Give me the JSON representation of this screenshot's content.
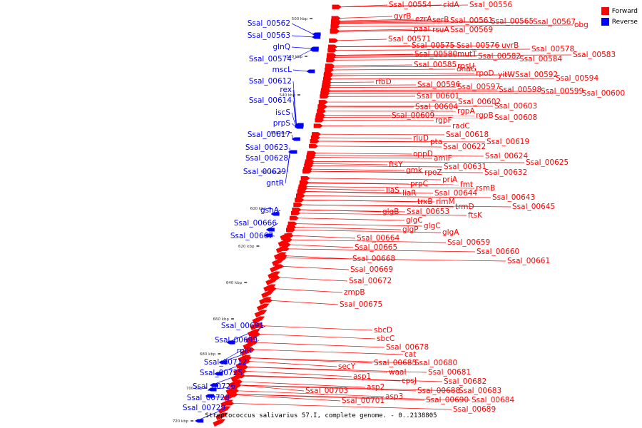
{
  "caption": "Streptococcus salivarius 57.I, complete genome. - 0..2138805",
  "legend": [
    {
      "label": "Forward",
      "color": "#ff0000"
    },
    {
      "label": "Reverse",
      "color": "#0000ff"
    }
  ],
  "colors": {
    "forward": "#ff0000",
    "reverse": "#0000ff",
    "backbone": "#888888"
  },
  "ticks": [
    "500 kbp",
    "520 kbp",
    "540 kbp",
    "560 kbp",
    "580 kbp",
    "600 kbp",
    "620 kbp",
    "640 kbp",
    "660 kbp",
    "680 kbp",
    "700 kbp",
    "720 kbp"
  ],
  "forward_labels": [
    "Ssal_00554",
    "cidA",
    "Ssal_00556",
    "gyrB",
    "ezrA",
    "serB",
    "Ssal_00561",
    "Ssal_00565",
    "Ssal_00567",
    "obg",
    "paaI",
    "rsuA",
    "Ssal_00569",
    "Ssal_00571",
    "Ssal_00575",
    "Ssal_00576",
    "uvrB",
    "Ssal_00578",
    "Ssal_00580",
    "mutT",
    "Ssal_00582",
    "Ssal_00583",
    "Ssal_00584",
    "Ssal_00585",
    "rpsU",
    "dnaG",
    "rpoD",
    "yitW",
    "Ssal_00592",
    "Ssal_00594",
    "rfbD",
    "Ssal_00596",
    "Ssal_00597",
    "Ssal_00598",
    "Ssal_00599",
    "Ssal_00600",
    "Ssal_00601",
    "Ssal_00602",
    "Ssal_00603",
    "Ssal_00604",
    "rgpA",
    "Ssal_00609",
    "rgpB",
    "Ssal_00608",
    "rgpF",
    "radC",
    "Ssal_00618",
    "rluD",
    "pta",
    "Ssal_00619",
    "Ssal_00622",
    "oppD",
    "Ssal_00624",
    "amiF",
    "Ssal_00625",
    "ftsY",
    "Ssal_00631",
    "gmk",
    "rpoZ",
    "Ssal_00632",
    "priA",
    "prpC",
    "fmt",
    "rsmB",
    "liaS",
    "liaR",
    "Ssal_00644",
    "Ssal_00643",
    "trxB",
    "rimM",
    "Ssal_00645",
    "trmD",
    "glgB",
    "Ssal_00653",
    "ftsK",
    "glgC",
    "glgC",
    "glgP",
    "glgA",
    "Ssal_00664",
    "Ssal_00659",
    "Ssal_00665",
    "Ssal_00660",
    "Ssal_00668",
    "Ssal_00661",
    "Ssal_00669",
    "Ssal_00672",
    "zmpB",
    "Ssal_00675",
    "sbcD",
    "sbcC",
    "Ssal_00678",
    "cat",
    "secY",
    "Ssal_00685",
    "Ssal_00680",
    "waaI",
    "Ssal_00681",
    "asp1",
    "cpsJ",
    "Ssal_00682",
    "asp2",
    "Ssal_00688",
    "Ssal_00683",
    "asp3",
    "Ssal_00690",
    "Ssal_00684",
    "Ssal_00703",
    "Ssal_00701",
    "Ssal_00689"
  ],
  "reverse_labels": [
    "Ssal_00562",
    "Ssal_00563",
    "glnQ",
    "Ssal_00574",
    "mscL",
    "Ssal_00612",
    "rex",
    "Ssal_00614",
    "iscS",
    "prpS",
    "Ssal_00617",
    "Ssal_00623",
    "Ssal_00628",
    "Ssal_00629",
    "gntR",
    "gshA",
    "Ssal_00666",
    "Ssal_00667",
    "Ssal_00691",
    "Ssal_00699",
    "rpiR",
    "Ssal_00712",
    "Ssal_00725",
    "Ssal_00726",
    "Ssal_00728",
    "Ssal_00729"
  ]
}
